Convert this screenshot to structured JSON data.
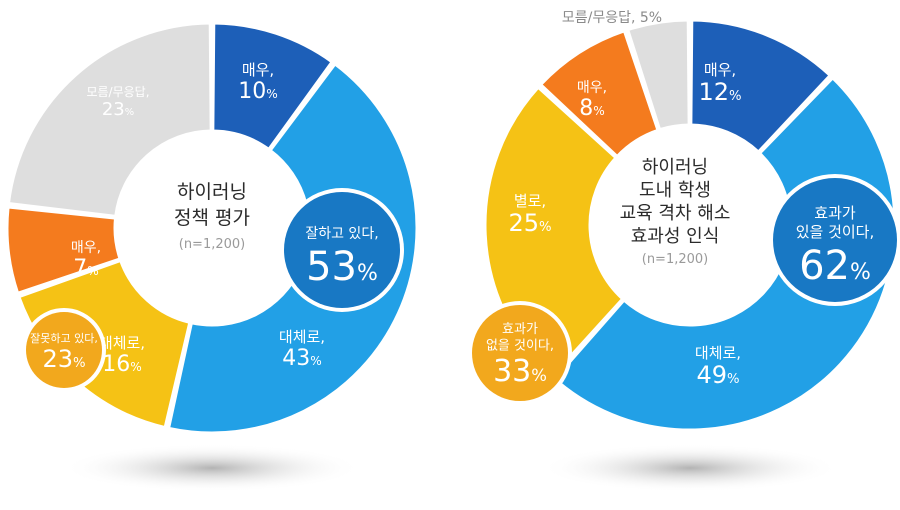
{
  "colors": {
    "dark_blue": "#1d5fb8",
    "sky_blue": "#22a0e6",
    "yellow": "#f5c215",
    "orange": "#f47b1e",
    "light_gray": "#dedede",
    "mid_gray": "#a6a6a6",
    "orange_bubble": "#f2a81d",
    "blue_bubble": "#1878c4"
  },
  "chart_data": [
    {
      "type": "pie",
      "center_title_lines": [
        "하이러닝",
        "정책 평가"
      ],
      "center_note": "(n=1,200)",
      "slices": [
        {
          "label": "매우,",
          "value": 10,
          "text": "10",
          "color": "dark_blue"
        },
        {
          "label": "대체로,",
          "value": 43,
          "text": "43",
          "color": "sky_blue"
        },
        {
          "label": "대체로,",
          "value": 16,
          "text": "16",
          "color": "yellow"
        },
        {
          "label": "매우,",
          "value": 7,
          "text": "7",
          "color": "orange"
        },
        {
          "label": "모름/무응답,",
          "value": 23,
          "text": "23",
          "color": "light_gray"
        }
      ],
      "groups": [
        {
          "label": "잘하고 있다,",
          "value": 53,
          "text": "53",
          "color": "blue_bubble"
        },
        {
          "label": "잘못하고 있다,",
          "value": 23,
          "text": "23",
          "color": "orange_bubble"
        }
      ],
      "unit": "%"
    },
    {
      "type": "pie",
      "center_title_lines": [
        "하이러닝",
        "도내 학생",
        "교육 격차 해소",
        "효과성 인식"
      ],
      "center_note": "(n=1,200)",
      "slices": [
        {
          "label": "매우,",
          "value": 12,
          "text": "12",
          "color": "dark_blue"
        },
        {
          "label": "대체로,",
          "value": 49,
          "text": "49",
          "color": "sky_blue"
        },
        {
          "label": "별로,",
          "value": 25,
          "text": "25",
          "color": "yellow"
        },
        {
          "label": "매우,",
          "value": 8,
          "text": "8",
          "color": "orange"
        },
        {
          "label": "모름/무응답,",
          "value": 5,
          "text": "5",
          "color": "light_gray"
        }
      ],
      "outside_label": "모름/무응답, 5%",
      "groups": [
        {
          "label_lines": [
            "효과가",
            "있을 것이다,"
          ],
          "value": 62,
          "text": "62",
          "color": "blue_bubble"
        },
        {
          "label_lines": [
            "효과가",
            "없을 것이다,"
          ],
          "value": 33,
          "text": "33",
          "color": "orange_bubble"
        }
      ],
      "unit": "%"
    }
  ]
}
